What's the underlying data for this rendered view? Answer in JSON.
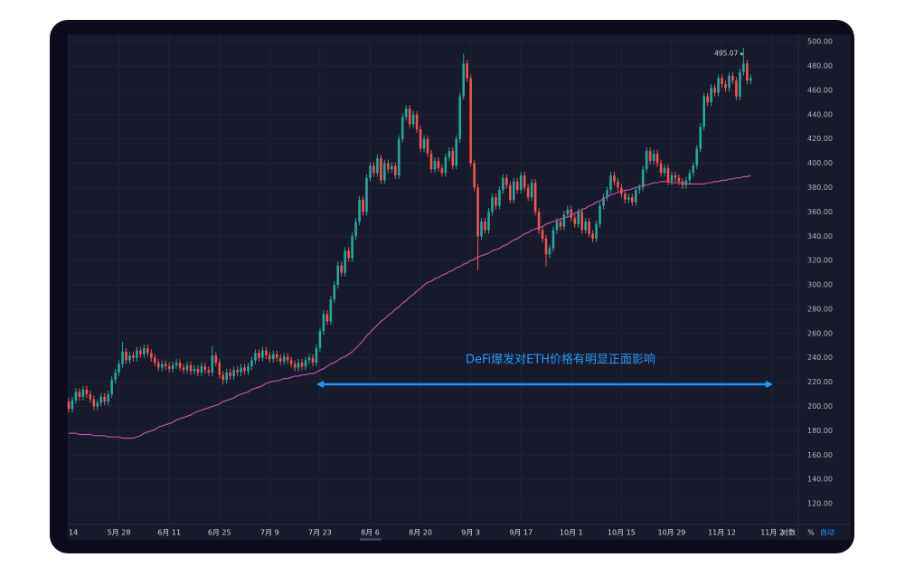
{
  "chart_data": {
    "type": "candlestick",
    "annotation": "DeFi爆发对ETH价格有明显正面影响",
    "scale_buttons": [
      "对数",
      "%",
      "自动"
    ],
    "up_color": "#26a69a",
    "down_color": "#ef5350",
    "ma_color": "#c04fa8",
    "ylim": [
      103,
      506
    ],
    "yticks": [
      {
        "value": 500,
        "label": "500.00"
      },
      {
        "value": 480,
        "label": "480.00"
      },
      {
        "value": 460,
        "label": "460.00"
      },
      {
        "value": 440,
        "label": "440.00"
      },
      {
        "value": 420,
        "label": "420.00"
      },
      {
        "value": 400,
        "label": "400.00"
      },
      {
        "value": 380,
        "label": "380.00"
      },
      {
        "value": 360,
        "label": "360.00"
      },
      {
        "value": 340,
        "label": "340.00"
      },
      {
        "value": 320,
        "label": "320.00"
      },
      {
        "value": 300,
        "label": "300.00"
      },
      {
        "value": 280,
        "label": "280.00"
      },
      {
        "value": 260,
        "label": "260.00"
      },
      {
        "value": 240,
        "label": "240.00"
      },
      {
        "value": 220,
        "label": "220.00"
      },
      {
        "value": 200,
        "label": "200.00"
      },
      {
        "value": 180,
        "label": "180.00"
      },
      {
        "value": 160,
        "label": "160.00"
      },
      {
        "value": 140,
        "label": "140.00"
      },
      {
        "value": 120,
        "label": "120.00"
      }
    ],
    "grid": true,
    "categories": [
      "14",
      null,
      null,
      null,
      null,
      null,
      null,
      null,
      null,
      null,
      null,
      null,
      null,
      null,
      "5月 28",
      null,
      null,
      null,
      null,
      null,
      null,
      null,
      null,
      null,
      null,
      null,
      null,
      null,
      "6月 11",
      null,
      null,
      null,
      null,
      null,
      null,
      null,
      null,
      null,
      null,
      null,
      null,
      null,
      "6月 25",
      null,
      null,
      null,
      null,
      null,
      null,
      null,
      null,
      null,
      null,
      null,
      null,
      null,
      "7月 9",
      null,
      null,
      null,
      null,
      null,
      null,
      null,
      null,
      null,
      null,
      null,
      null,
      null,
      "7月 23",
      null,
      null,
      null,
      null,
      null,
      null,
      null,
      null,
      null,
      null,
      null,
      null,
      null,
      "8月 6",
      null,
      null,
      null,
      null,
      null,
      null,
      null,
      null,
      null,
      null,
      null,
      null,
      null,
      "8月 20",
      null,
      null,
      null,
      null,
      null,
      null,
      null,
      null,
      null,
      null,
      null,
      null,
      null,
      "9月 3",
      null,
      null,
      null,
      null,
      null,
      null,
      null,
      null,
      null,
      null,
      null,
      null,
      null,
      "9月 17",
      null,
      null,
      null,
      null,
      null,
      null,
      null,
      null,
      null,
      null,
      null,
      null,
      null,
      "10月 1",
      null,
      null,
      null,
      null,
      null,
      null,
      null,
      null,
      null,
      null,
      null,
      null,
      null,
      "10月 15",
      null,
      null,
      null,
      null,
      null,
      null,
      null,
      null,
      null,
      null,
      null,
      null,
      null,
      "10月 29",
      null,
      null,
      null,
      null,
      null,
      null,
      null,
      null,
      null,
      null,
      null,
      null,
      null,
      "11月 12",
      null,
      null,
      null,
      null,
      null,
      null,
      null,
      null,
      null,
      null,
      null,
      null,
      null,
      "11月 2"
    ],
    "open": [
      204,
      198,
      205,
      212,
      208,
      214,
      210,
      206,
      200,
      203,
      208,
      204,
      210,
      222,
      228,
      235,
      245,
      238,
      242,
      240,
      246,
      243,
      248,
      244,
      240,
      236,
      232,
      235,
      233,
      231,
      234,
      236,
      232,
      230,
      234,
      229,
      231,
      228,
      233,
      230,
      228,
      242,
      236,
      226,
      222,
      228,
      225,
      230,
      228,
      232,
      229,
      233,
      238,
      244,
      240,
      246,
      242,
      239,
      243,
      240,
      237,
      241,
      238,
      235,
      232,
      236,
      233,
      238,
      240,
      236,
      248,
      262,
      276,
      270,
      288,
      300,
      316,
      310,
      328,
      322,
      340,
      352,
      370,
      360,
      388,
      398,
      392,
      404,
      386,
      400,
      395,
      398,
      390,
      420,
      438,
      445,
      432,
      440,
      428,
      412,
      420,
      408,
      395,
      402,
      396,
      392,
      405,
      410,
      398,
      420,
      455,
      482,
      470,
      400,
      380,
      340,
      352,
      345,
      360,
      372,
      365,
      378,
      388,
      382,
      370,
      385,
      378,
      390,
      380,
      372,
      384,
      360,
      345,
      338,
      325,
      330,
      345,
      352,
      348,
      358,
      362,
      355,
      350,
      360,
      345,
      352,
      342,
      338,
      350,
      365,
      372,
      378,
      390,
      385,
      380,
      375,
      370,
      372,
      368,
      378,
      380,
      395,
      410,
      402,
      408,
      400,
      392,
      396,
      385,
      390,
      388,
      385,
      382,
      386,
      392,
      398,
      412,
      430,
      455,
      450,
      462,
      458,
      470,
      465,
      462,
      472,
      468,
      455,
      475,
      482,
      468,
      null,
      null,
      null,
      null,
      null,
      null
    ],
    "high": [
      207,
      208,
      215,
      215,
      217,
      217,
      213,
      209,
      206,
      211,
      211,
      213,
      225,
      231,
      238,
      253,
      248,
      245,
      245,
      249,
      249,
      251,
      251,
      247,
      243,
      239,
      238,
      238,
      236,
      237,
      239,
      239,
      235,
      237,
      237,
      234,
      234,
      236,
      236,
      233,
      250,
      245,
      239,
      229,
      231,
      231,
      233,
      233,
      235,
      235,
      236,
      241,
      247,
      247,
      249,
      249,
      245,
      246,
      246,
      243,
      244,
      244,
      241,
      238,
      239,
      239,
      241,
      243,
      243,
      251,
      265,
      279,
      279,
      291,
      303,
      319,
      319,
      331,
      331,
      343,
      355,
      373,
      373,
      391,
      401,
      401,
      407,
      407,
      403,
      403,
      401,
      401,
      423,
      441,
      448,
      448,
      443,
      443,
      431,
      423,
      423,
      411,
      405,
      405,
      399,
      408,
      413,
      413,
      423,
      458,
      490,
      485,
      473,
      403,
      383,
      355,
      355,
      363,
      375,
      375,
      381,
      391,
      391,
      385,
      388,
      388,
      393,
      393,
      383,
      387,
      387,
      363,
      348,
      341,
      333,
      348,
      355,
      355,
      361,
      365,
      365,
      358,
      363,
      363,
      355,
      355,
      345,
      353,
      368,
      375,
      381,
      393,
      393,
      388,
      383,
      378,
      375,
      375,
      381,
      383,
      398,
      413,
      413,
      411,
      411,
      403,
      399,
      399,
      393,
      393,
      391,
      388,
      389,
      395,
      401,
      415,
      433,
      458,
      458,
      465,
      465,
      473,
      473,
      468,
      475,
      475,
      471,
      478,
      495.07,
      485,
      473,
      null,
      null,
      null,
      null,
      null,
      null
    ],
    "low": [
      195,
      195,
      202,
      205,
      205,
      207,
      203,
      197,
      197,
      200,
      201,
      201,
      207,
      219,
      225,
      232,
      235,
      235,
      237,
      237,
      240,
      240,
      241,
      237,
      233,
      229,
      229,
      230,
      228,
      228,
      231,
      229,
      227,
      227,
      226,
      226,
      225,
      225,
      227,
      225,
      225,
      233,
      223,
      218,
      219,
      222,
      222,
      225,
      225,
      226,
      226,
      230,
      235,
      237,
      237,
      239,
      236,
      236,
      237,
      234,
      234,
      235,
      232,
      229,
      229,
      230,
      230,
      235,
      233,
      233,
      245,
      259,
      267,
      267,
      285,
      297,
      307,
      307,
      319,
      319,
      337,
      349,
      357,
      357,
      385,
      389,
      389,
      383,
      383,
      392,
      392,
      387,
      387,
      417,
      435,
      429,
      429,
      425,
      409,
      409,
      405,
      392,
      392,
      393,
      389,
      389,
      402,
      395,
      395,
      417,
      452,
      467,
      397,
      377,
      312,
      337,
      342,
      342,
      357,
      362,
      362,
      375,
      379,
      367,
      367,
      375,
      375,
      377,
      369,
      369,
      357,
      342,
      335,
      315,
      322,
      327,
      342,
      345,
      345,
      355,
      352,
      347,
      347,
      342,
      342,
      339,
      335,
      335,
      347,
      362,
      369,
      375,
      382,
      377,
      372,
      367,
      367,
      365,
      365,
      375,
      377,
      392,
      399,
      399,
      397,
      389,
      389,
      382,
      382,
      385,
      382,
      379,
      379,
      383,
      389,
      395,
      409,
      427,
      447,
      447,
      455,
      455,
      462,
      459,
      459,
      465,
      452,
      452,
      472,
      465,
      465,
      null,
      null,
      null,
      null,
      null,
      null
    ],
    "close": [
      198,
      205,
      212,
      208,
      214,
      210,
      206,
      200,
      203,
      208,
      204,
      210,
      222,
      228,
      235,
      245,
      238,
      242,
      240,
      246,
      243,
      248,
      244,
      240,
      236,
      232,
      235,
      233,
      231,
      234,
      236,
      232,
      230,
      234,
      229,
      231,
      228,
      233,
      230,
      228,
      242,
      236,
      226,
      222,
      228,
      225,
      230,
      228,
      232,
      229,
      233,
      238,
      244,
      240,
      246,
      242,
      239,
      243,
      240,
      237,
      241,
      238,
      235,
      232,
      236,
      233,
      238,
      240,
      236,
      248,
      262,
      276,
      270,
      288,
      300,
      316,
      310,
      328,
      322,
      340,
      352,
      370,
      360,
      388,
      398,
      392,
      404,
      386,
      400,
      395,
      398,
      390,
      420,
      438,
      445,
      432,
      440,
      428,
      412,
      420,
      408,
      395,
      402,
      396,
      392,
      405,
      410,
      398,
      420,
      455,
      482,
      470,
      400,
      380,
      340,
      352,
      345,
      360,
      372,
      365,
      378,
      388,
      382,
      370,
      385,
      378,
      390,
      380,
      372,
      384,
      360,
      345,
      338,
      325,
      330,
      345,
      352,
      348,
      358,
      362,
      355,
      350,
      360,
      345,
      352,
      342,
      338,
      350,
      365,
      372,
      378,
      390,
      385,
      380,
      375,
      370,
      372,
      368,
      378,
      380,
      395,
      410,
      402,
      408,
      400,
      392,
      396,
      385,
      390,
      388,
      385,
      382,
      386,
      392,
      398,
      412,
      430,
      455,
      450,
      462,
      458,
      470,
      465,
      462,
      472,
      468,
      455,
      475,
      482,
      468,
      470,
      null,
      null,
      null,
      null,
      null,
      null
    ],
    "ma_values": [
      178,
      178,
      178,
      177,
      177,
      177,
      177,
      176,
      176,
      176,
      176,
      175,
      175,
      175,
      175,
      174,
      174,
      174,
      174,
      175,
      176,
      178,
      179,
      180,
      181,
      183,
      184,
      185,
      186,
      187,
      189,
      190,
      191,
      192,
      193,
      195,
      196,
      197,
      198,
      199,
      200,
      201,
      202,
      204,
      205,
      206,
      207,
      209,
      210,
      211,
      212,
      214,
      215,
      216,
      217,
      219,
      220,
      221,
      221,
      222,
      223,
      223,
      224,
      225,
      225,
      226,
      226,
      227,
      227,
      228,
      230,
      231,
      233,
      235,
      236,
      238,
      240,
      241,
      243,
      245,
      248,
      251,
      254,
      258,
      261,
      264,
      267,
      270,
      272,
      275,
      277,
      280,
      282,
      285,
      287,
      290,
      292,
      295,
      297,
      300,
      302,
      303,
      305,
      306,
      308,
      309,
      311,
      312,
      314,
      315,
      317,
      318,
      320,
      321,
      323,
      324,
      325,
      326,
      328,
      329,
      330,
      332,
      333,
      335,
      337,
      338,
      340,
      342,
      343,
      345,
      346,
      347,
      348,
      350,
      351,
      352,
      353,
      354,
      355,
      356,
      357,
      359,
      360,
      362,
      363,
      365,
      366,
      368,
      369,
      371,
      372,
      374,
      375,
      376,
      377,
      378,
      378,
      379,
      380,
      381,
      382,
      382,
      383,
      384,
      384,
      385,
      385,
      385,
      384,
      384,
      384,
      384,
      383,
      383,
      383,
      383,
      383,
      383,
      384,
      384,
      385,
      385,
      386,
      386,
      387,
      387,
      388,
      388,
      389,
      389,
      390,
      null,
      null,
      null,
      null,
      null,
      null
    ]
  }
}
